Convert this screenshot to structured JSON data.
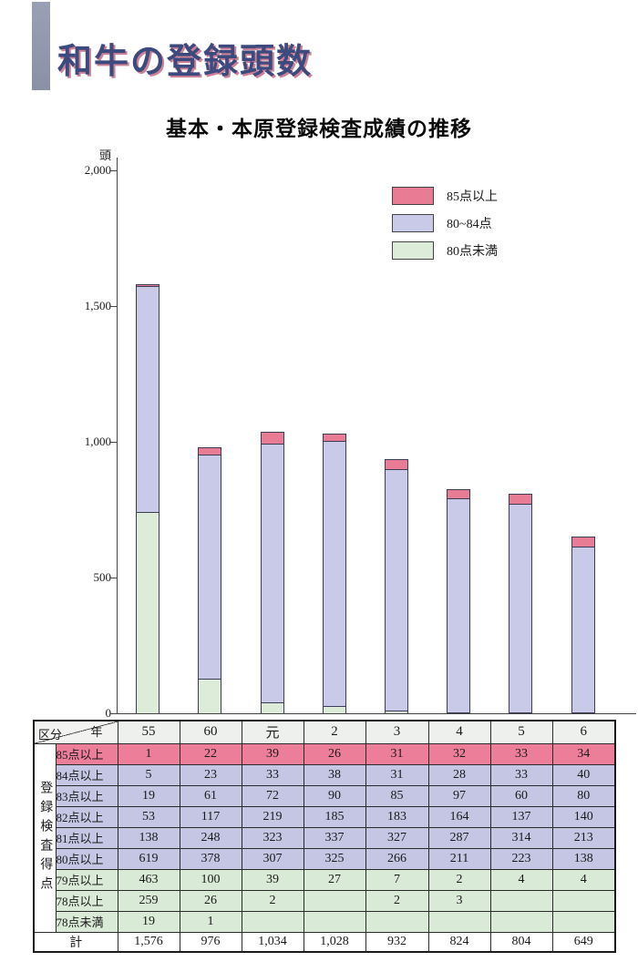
{
  "page": {
    "title": "和牛の登録頭数"
  },
  "colors": {
    "accent_bar": "#9097ab",
    "title_text": "#3c4a7e",
    "title_shadow": "#cf8296",
    "pink": "#ec7e99",
    "lav": "#c5c6e4",
    "green": "#d9ead6",
    "year_header_bg": "#eef0ee",
    "bar_outline": "#3c3c55"
  },
  "chart_data": {
    "type": "bar",
    "variant": "stacked",
    "title": "基本・本原登録検査成績の推移",
    "unit_label": "頭",
    "categories": [
      "55",
      "60",
      "元",
      "2",
      "3",
      "4",
      "5",
      "6"
    ],
    "series": [
      {
        "name": "85点以上",
        "color": "#e87c95",
        "values": [
          1,
          22,
          39,
          26,
          31,
          32,
          33,
          34
        ]
      },
      {
        "name": "80~84点",
        "color": "#c9cae8",
        "values": [
          834,
          827,
          954,
          975,
          892,
          787,
          767,
          611
        ]
      },
      {
        "name": "80点未満",
        "color": "#dcecd8",
        "values": [
          741,
          127,
          41,
          27,
          9,
          5,
          4,
          4
        ]
      }
    ],
    "totals": [
      1576,
      976,
      1034,
      1028,
      932,
      824,
      804,
      649
    ],
    "ylim": [
      0,
      2000
    ],
    "yticks": [
      {
        "label": "2,000",
        "value": 2000
      },
      {
        "label": "1,500",
        "value": 1500
      },
      {
        "label": "1,000",
        "value": 1000
      },
      {
        "label": "500",
        "value": 500
      },
      {
        "label": "0",
        "value": 0
      }
    ],
    "legend_position": "upper right",
    "grid": false
  },
  "table": {
    "corner": {
      "top": "年",
      "bottom": "区分"
    },
    "years": [
      "55",
      "60",
      "元",
      "2",
      "3",
      "4",
      "5",
      "6"
    ],
    "side_label": "登録検査得点",
    "rows": [
      {
        "label": "85点以上",
        "tone": "pink",
        "values": [
          "1",
          "22",
          "39",
          "26",
          "31",
          "32",
          "33",
          "34"
        ]
      },
      {
        "label": "84点以上",
        "tone": "lav",
        "values": [
          "5",
          "23",
          "33",
          "38",
          "31",
          "28",
          "33",
          "40"
        ]
      },
      {
        "label": "83点以上",
        "tone": "lav",
        "values": [
          "19",
          "61",
          "72",
          "90",
          "85",
          "97",
          "60",
          "80"
        ]
      },
      {
        "label": "82点以上",
        "tone": "lav",
        "values": [
          "53",
          "117",
          "219",
          "185",
          "183",
          "164",
          "137",
          "140"
        ]
      },
      {
        "label": "81点以上",
        "tone": "lav",
        "values": [
          "138",
          "248",
          "323",
          "337",
          "327",
          "287",
          "314",
          "213"
        ]
      },
      {
        "label": "80点以上",
        "tone": "lav",
        "values": [
          "619",
          "378",
          "307",
          "325",
          "266",
          "211",
          "223",
          "138"
        ]
      },
      {
        "label": "79点以上",
        "tone": "green",
        "values": [
          "463",
          "100",
          "39",
          "27",
          "7",
          "2",
          "4",
          "4"
        ]
      },
      {
        "label": "78点以上",
        "tone": "green",
        "values": [
          "259",
          "26",
          "2",
          "",
          "2",
          "3",
          "",
          ""
        ]
      },
      {
        "label": "78点未満",
        "tone": "green",
        "values": [
          "19",
          "1",
          "",
          "",
          "",
          "",
          "",
          ""
        ]
      }
    ],
    "total_row": {
      "label": "計",
      "values": [
        "1,576",
        "976",
        "1,034",
        "1,028",
        "932",
        "824",
        "804",
        "649"
      ]
    }
  }
}
